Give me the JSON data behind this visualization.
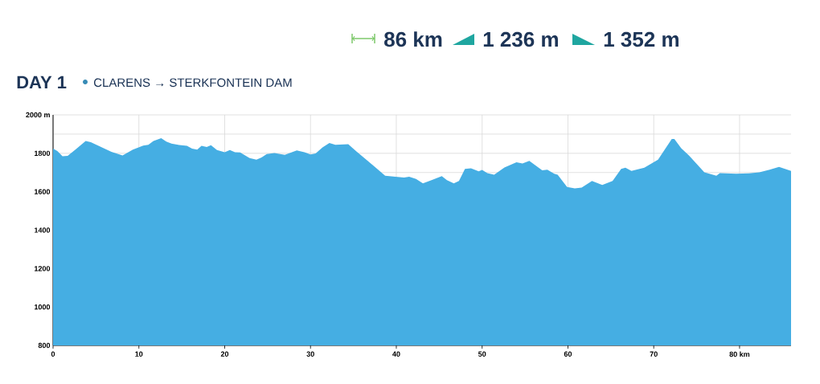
{
  "chart_data": {
    "type": "area",
    "title": "DAY 1",
    "subtitle": "CLARENS → STERKFONTEIN DAM",
    "annotations": [
      "86 km",
      "1 236 m",
      "1 352 m"
    ],
    "x": [
      0,
      0.5,
      1.1,
      1.7,
      2.6,
      3.8,
      4.4,
      5.6,
      6.8,
      8.1,
      9.3,
      10.5,
      11.1,
      11.7,
      12.6,
      13.2,
      13.8,
      14.7,
      15.6,
      16.2,
      16.8,
      17.3,
      17.9,
      18.4,
      19.1,
      20.0,
      20.6,
      21.2,
      21.8,
      22.9,
      23.7,
      24.3,
      24.9,
      25.8,
      27.0,
      28.4,
      29.3,
      30.0,
      30.6,
      31.4,
      32.2,
      32.9,
      34.4,
      35.3,
      36.5,
      37.5,
      38.7,
      39.9,
      40.9,
      41.5,
      42.3,
      43.1,
      44.1,
      45.3,
      45.9,
      46.7,
      47.3,
      48.0,
      48.7,
      49.6,
      50.0,
      50.6,
      51.4,
      52.6,
      54.0,
      54.7,
      55.5,
      57.0,
      57.6,
      58.4,
      58.8,
      59.9,
      60.8,
      61.6,
      62.8,
      64.0,
      65.2,
      66.2,
      66.7,
      67.4,
      68.9,
      70.5,
      72.1,
      72.4,
      73.2,
      74.1,
      75.9,
      77.3,
      77.7,
      79.6,
      81.1,
      82.3,
      83.5,
      84.6,
      86
    ],
    "values": [
      1824,
      1812,
      1785,
      1787,
      1819,
      1864,
      1858,
      1833,
      1808,
      1789,
      1819,
      1840,
      1844,
      1864,
      1879,
      1861,
      1850,
      1843,
      1839,
      1824,
      1819,
      1839,
      1833,
      1842,
      1817,
      1806,
      1817,
      1806,
      1804,
      1775,
      1767,
      1778,
      1796,
      1801,
      1792,
      1815,
      1806,
      1794,
      1799,
      1831,
      1854,
      1844,
      1847,
      1812,
      1767,
      1729,
      1683,
      1678,
      1674,
      1678,
      1667,
      1643,
      1660,
      1681,
      1660,
      1644,
      1656,
      1719,
      1722,
      1706,
      1714,
      1697,
      1688,
      1726,
      1753,
      1747,
      1761,
      1711,
      1715,
      1694,
      1688,
      1625,
      1617,
      1622,
      1656,
      1635,
      1656,
      1719,
      1725,
      1708,
      1725,
      1767,
      1875,
      1875,
      1826,
      1789,
      1701,
      1683,
      1697,
      1694,
      1696,
      1701,
      1715,
      1729,
      1708
    ],
    "color": "#45aee3",
    "xlim": [
      0,
      86
    ],
    "ylim": [
      800,
      2000
    ],
    "xticks": [
      0,
      10,
      20,
      30,
      40,
      50,
      60,
      70,
      {
        "value": 80,
        "label": "80 km"
      }
    ],
    "yticks": [
      800,
      {
        "value": 900,
        "label": null
      },
      1000,
      {
        "value": 1100,
        "label": null
      },
      1200,
      {
        "value": 1300,
        "label": null
      },
      1400,
      {
        "value": 1500,
        "label": null
      },
      1600,
      {
        "value": 1700,
        "label": null
      },
      1800,
      {
        "value": 1900,
        "label": null
      },
      {
        "value": 2000,
        "label": "2000 m"
      }
    ],
    "grid": true
  }
}
